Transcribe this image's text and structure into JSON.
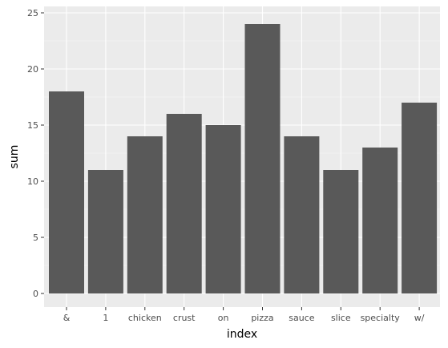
{
  "chart_data": {
    "type": "bar",
    "categories": [
      "&",
      "1",
      "chicken",
      "crust",
      "on",
      "pizza",
      "sauce",
      "slice",
      "specialty",
      "w/"
    ],
    "values": [
      18,
      11,
      14,
      16,
      15,
      24,
      14,
      11,
      13,
      17
    ],
    "title": "",
    "xlabel": "index",
    "ylabel": "sum",
    "ylim": [
      0,
      25
    ],
    "yticks": [
      0,
      5,
      10,
      15,
      20,
      25
    ],
    "grid": true,
    "legend": "none",
    "colors": {
      "bar": "#595959",
      "panel": "#ebebeb",
      "grid_major": "#ffffff",
      "grid_minor": "#f5f5f5",
      "tick_text": "#4d4d4d",
      "tick_mark": "#333333"
    }
  }
}
